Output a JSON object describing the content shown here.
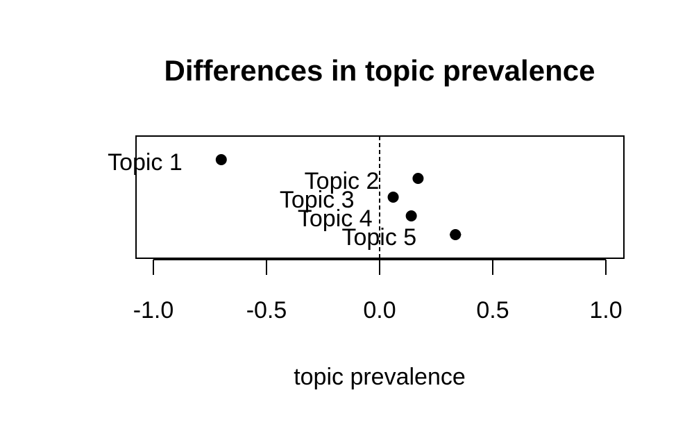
{
  "chart_data": {
    "type": "scatter",
    "title": "Differences in topic prevalence",
    "xlabel": "topic prevalence",
    "ylabel": "",
    "xlim": [
      -1.08,
      1.08
    ],
    "xticks": [
      -1.0,
      -0.5,
      0.0,
      0.5,
      1.0
    ],
    "xtick_labels": [
      "-1.0",
      "-0.5",
      "0.0",
      "0.5",
      "1.0"
    ],
    "reference_line": {
      "x": 0,
      "style": "dashed"
    },
    "grid": false,
    "points": [
      {
        "label": "Topic 1",
        "x": -0.7,
        "lower": -0.72,
        "upper": -0.68
      },
      {
        "label": "Topic 2",
        "x": 0.17,
        "lower": 0.15,
        "upper": 0.19
      },
      {
        "label": "Topic 3",
        "x": 0.06,
        "lower": 0.04,
        "upper": 0.08
      },
      {
        "label": "Topic 4",
        "x": 0.14,
        "lower": 0.12,
        "upper": 0.16
      },
      {
        "label": "Topic 5",
        "x": 0.335,
        "lower": 0.31,
        "upper": 0.36
      }
    ]
  }
}
